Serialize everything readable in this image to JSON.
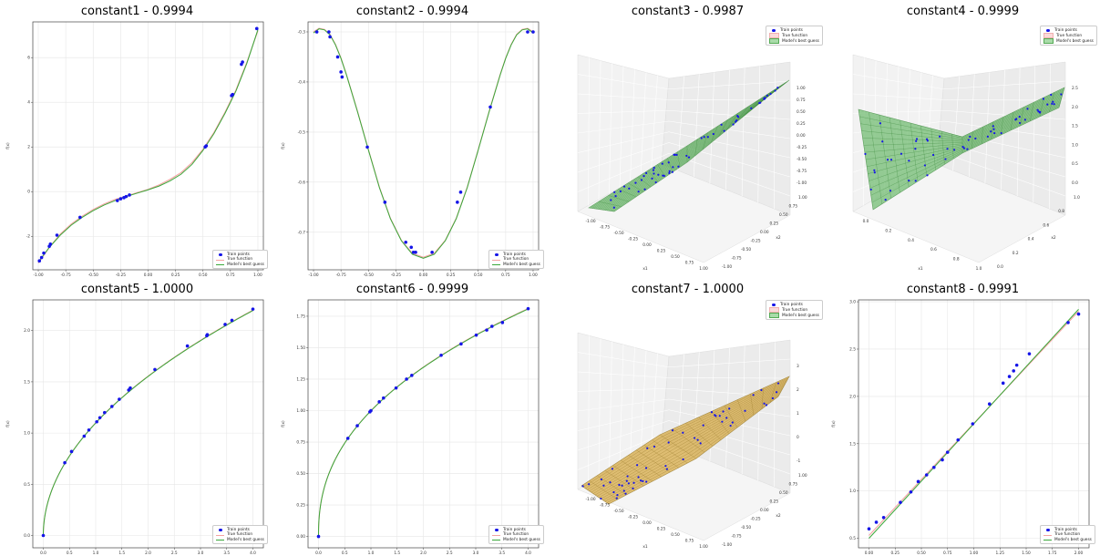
{
  "legend": {
    "train": "Train points",
    "true_fn": "True function",
    "guess": "Model's best guess"
  },
  "chart_data": [
    {
      "id": "c1",
      "type": "line",
      "dim": 2,
      "title": "constant1 - 0.9994",
      "xlabel": "x",
      "ylabel": "f(x)",
      "xlim": [
        -1.05,
        1.05
      ],
      "ylim": [
        -3.5,
        7.6
      ],
      "xticks": [
        -1.0,
        -0.75,
        -0.5,
        -0.25,
        0.0,
        0.25,
        0.5,
        0.75,
        1.0
      ],
      "xtick_labels": [
        "-1.00",
        "-0.75",
        "-0.50",
        "-0.25",
        "0.00",
        "0.25",
        "0.50",
        "0.75",
        "1.00"
      ],
      "yticks": [
        -2,
        0,
        2,
        4,
        6
      ],
      "ytick_labels": [
        "-2",
        "0",
        "2",
        "4",
        "6"
      ],
      "true_curve": {
        "x": [
          -1.0,
          -0.9,
          -0.8,
          -0.7,
          -0.6,
          -0.5,
          -0.4,
          -0.3,
          -0.2,
          -0.1,
          0.0,
          0.1,
          0.2,
          0.3,
          0.4,
          0.5,
          0.6,
          0.7,
          0.8,
          0.9,
          1.0
        ],
        "y": [
          -3.2,
          -2.5,
          -1.9,
          -1.45,
          -1.1,
          -0.8,
          -0.55,
          -0.35,
          -0.2,
          -0.05,
          0.1,
          0.3,
          0.55,
          0.85,
          1.3,
          1.9,
          2.65,
          3.55,
          4.55,
          5.8,
          7.2
        ]
      },
      "guess_curve": {
        "x": [
          -1.0,
          -0.9,
          -0.8,
          -0.7,
          -0.6,
          -0.5,
          -0.4,
          -0.3,
          -0.2,
          -0.1,
          0.0,
          0.1,
          0.2,
          0.3,
          0.4,
          0.5,
          0.6,
          0.7,
          0.8,
          0.9,
          1.0
        ],
        "y": [
          -3.15,
          -2.5,
          -1.95,
          -1.5,
          -1.15,
          -0.85,
          -0.6,
          -0.4,
          -0.22,
          -0.07,
          0.08,
          0.25,
          0.48,
          0.78,
          1.22,
          1.85,
          2.6,
          3.5,
          4.5,
          5.75,
          7.25
        ]
      },
      "points": {
        "x": [
          -0.99,
          -0.97,
          -0.95,
          -0.9,
          -0.89,
          -0.83,
          -0.62,
          -0.28,
          -0.25,
          -0.22,
          -0.2,
          -0.17,
          0.52,
          0.53,
          0.76,
          0.77,
          0.85,
          0.86,
          0.99
        ],
        "y": [
          -3.1,
          -2.95,
          -2.75,
          -2.45,
          -2.35,
          -1.95,
          -1.15,
          -0.4,
          -0.32,
          -0.27,
          -0.22,
          -0.15,
          2.0,
          2.05,
          4.3,
          4.35,
          5.7,
          5.8,
          7.3
        ]
      }
    },
    {
      "id": "c2",
      "type": "line",
      "dim": 2,
      "title": "constant2 - 0.9994",
      "xlabel": "x",
      "ylabel": "f(x)",
      "xlim": [
        -1.05,
        1.05
      ],
      "ylim": [
        -0.775,
        -0.28
      ],
      "xticks": [
        -1.0,
        -0.75,
        -0.5,
        -0.25,
        0.0,
        0.25,
        0.5,
        0.75,
        1.0
      ],
      "xtick_labels": [
        "-1.00",
        "-0.75",
        "-0.50",
        "-0.25",
        "0.00",
        "0.25",
        "0.50",
        "0.75",
        "1.00"
      ],
      "yticks": [
        -0.7,
        -0.6,
        -0.5,
        -0.4,
        -0.3
      ],
      "ytick_labels": [
        "-0.7",
        "-0.6",
        "-0.5",
        "-0.4",
        "-0.3"
      ],
      "true_curve": {
        "x": [
          -1.0,
          -0.95,
          -0.9,
          -0.85,
          -0.8,
          -0.75,
          -0.7,
          -0.6,
          -0.5,
          -0.4,
          -0.3,
          -0.2,
          -0.1,
          0.0,
          0.1,
          0.2,
          0.3,
          0.4,
          0.5,
          0.6,
          0.7,
          0.75,
          0.8,
          0.85,
          0.9,
          0.95,
          1.0
        ],
        "y": [
          -0.3,
          -0.293,
          -0.295,
          -0.305,
          -0.325,
          -0.352,
          -0.385,
          -0.458,
          -0.535,
          -0.61,
          -0.672,
          -0.716,
          -0.742,
          -0.75,
          -0.742,
          -0.716,
          -0.672,
          -0.61,
          -0.535,
          -0.458,
          -0.385,
          -0.352,
          -0.325,
          -0.305,
          -0.295,
          -0.293,
          -0.3
        ]
      },
      "guess_curve": {
        "x": [
          -1.0,
          -0.95,
          -0.9,
          -0.85,
          -0.8,
          -0.75,
          -0.7,
          -0.6,
          -0.5,
          -0.4,
          -0.3,
          -0.2,
          -0.1,
          0.0,
          0.1,
          0.2,
          0.3,
          0.4,
          0.5,
          0.6,
          0.7,
          0.75,
          0.8,
          0.85,
          0.9,
          0.95,
          1.0
        ],
        "y": [
          -0.302,
          -0.294,
          -0.296,
          -0.306,
          -0.326,
          -0.353,
          -0.386,
          -0.459,
          -0.536,
          -0.611,
          -0.673,
          -0.717,
          -0.744,
          -0.752,
          -0.744,
          -0.717,
          -0.673,
          -0.611,
          -0.536,
          -0.459,
          -0.386,
          -0.353,
          -0.326,
          -0.306,
          -0.296,
          -0.294,
          -0.302
        ]
      },
      "points": {
        "x": [
          -0.97,
          -0.86,
          -0.85,
          -0.78,
          -0.75,
          -0.74,
          -0.51,
          -0.35,
          -0.16,
          -0.11,
          -0.09,
          -0.07,
          0.08,
          0.31,
          0.34,
          0.61,
          0.95,
          1.0
        ],
        "y": [
          -0.3,
          -0.3,
          -0.31,
          -0.35,
          -0.38,
          -0.39,
          -0.53,
          -0.64,
          -0.72,
          -0.73,
          -0.74,
          -0.74,
          -0.74,
          -0.64,
          -0.62,
          -0.45,
          -0.3,
          -0.3
        ]
      }
    },
    {
      "id": "c3",
      "type": "scatter",
      "dim": 3,
      "style": "green",
      "title": "constant3 - 0.9987",
      "xlabel": "x1",
      "ylabel": "x2",
      "zticks": [
        "1.00",
        "0.75",
        "0.50",
        "0.25",
        "0.00",
        "-0.25",
        "-0.50",
        "-0.75",
        "-1.00"
      ],
      "x1ticks": [
        "-1.00",
        "-0.75",
        "-0.50",
        "-0.25",
        "0.00",
        "0.25",
        "0.50",
        "0.75",
        "1.00"
      ],
      "x2ticks": [
        "1.00",
        "0.75",
        "0.50",
        "0.25",
        "0.00",
        "-0.25",
        "-0.50",
        "-0.75",
        "-1.00"
      ]
    },
    {
      "id": "c4",
      "type": "scatter",
      "dim": 3,
      "style": "green",
      "title": "constant4 - 0.9999",
      "xlabel": "x1",
      "ylabel": "x2",
      "zticks": [
        "2.5",
        "2.0",
        "1.5",
        "1.0",
        "0.5",
        "0.0"
      ],
      "x1ticks": [
        "0.0",
        "0.2",
        "0.4",
        "0.6",
        "0.8",
        "1.0"
      ],
      "x2ticks": [
        "1.0",
        "0.8",
        "0.6",
        "0.4",
        "0.2",
        "0.0"
      ]
    },
    {
      "id": "c5",
      "type": "line",
      "dim": 2,
      "title": "constant5 - 1.0000",
      "xlabel": "x",
      "ylabel": "f(x)",
      "xlim": [
        -0.2,
        4.2
      ],
      "ylim": [
        -0.12,
        2.3
      ],
      "xticks": [
        0.0,
        0.5,
        1.0,
        1.5,
        2.0,
        2.5,
        3.0,
        3.5,
        4.0
      ],
      "xtick_labels": [
        "0.0",
        "0.5",
        "1.0",
        "1.5",
        "2.0",
        "2.5",
        "3.0",
        "3.5",
        "4.0"
      ],
      "yticks": [
        0.0,
        0.5,
        1.0,
        1.5,
        2.0
      ],
      "ytick_labels": [
        "0.0",
        "0.5",
        "1.0",
        "1.5",
        "2.0"
      ],
      "curve_fn": "power",
      "coef": 1.1,
      "exp": 0.5,
      "points": {
        "x": [
          0.0,
          0.41,
          0.54,
          0.78,
          0.87,
          1.02,
          1.08,
          1.17,
          1.31,
          1.45,
          1.63,
          1.66,
          2.13,
          2.75,
          3.12,
          3.13,
          3.47,
          3.6,
          4.0
        ],
        "y": [
          0.0,
          0.71,
          0.82,
          0.97,
          1.03,
          1.11,
          1.15,
          1.2,
          1.26,
          1.33,
          1.42,
          1.44,
          1.62,
          1.85,
          1.95,
          1.96,
          2.06,
          2.1,
          2.21
        ]
      }
    },
    {
      "id": "c6",
      "type": "line",
      "dim": 2,
      "title": "constant6 - 0.9999",
      "xlabel": "x",
      "ylabel": "f(x)",
      "xlim": [
        -0.2,
        4.2
      ],
      "ylim": [
        -0.09,
        1.88
      ],
      "xticks": [
        0.0,
        0.5,
        1.0,
        1.5,
        2.0,
        2.5,
        3.0,
        3.5,
        4.0
      ],
      "xtick_labels": [
        "0.0",
        "0.5",
        "1.0",
        "1.5",
        "2.0",
        "2.5",
        "3.0",
        "3.5",
        "4.0"
      ],
      "yticks": [
        0.0,
        0.25,
        0.5,
        0.75,
        1.0,
        1.25,
        1.5,
        1.75
      ],
      "ytick_labels": [
        "0.00",
        "0.25",
        "0.50",
        "0.75",
        "1.00",
        "1.25",
        "1.50",
        "1.75"
      ],
      "curve_fn": "power",
      "coef": 1.0,
      "exp": 0.4285,
      "points": {
        "x": [
          0.0,
          0.56,
          0.74,
          0.98,
          1.0,
          1.16,
          1.24,
          1.48,
          1.68,
          1.78,
          2.34,
          2.72,
          3.01,
          3.21,
          3.31,
          3.51,
          4.0
        ],
        "y": [
          0.0,
          0.78,
          0.88,
          0.99,
          1.0,
          1.07,
          1.1,
          1.18,
          1.25,
          1.28,
          1.44,
          1.53,
          1.6,
          1.64,
          1.67,
          1.7,
          1.81
        ]
      }
    },
    {
      "id": "c7",
      "type": "scatter",
      "dim": 3,
      "style": "orange",
      "title": "constant7 - 1.0000",
      "xlabel": "x1",
      "ylabel": "x2",
      "zticks": [
        "3",
        "2",
        "1",
        "0",
        "-1"
      ],
      "x1ticks": [
        "-1.00",
        "-0.75",
        "-0.50",
        "-0.25",
        "0.00",
        "0.25",
        "0.50",
        "0.75",
        "1.00"
      ],
      "x2ticks": [
        "1.00",
        "0.75",
        "0.50",
        "0.25",
        "0.00",
        "-0.25",
        "-0.50",
        "-0.75",
        "-1.00"
      ]
    },
    {
      "id": "c8",
      "type": "line",
      "dim": 2,
      "title": "constant8 - 0.9991",
      "xlabel": "x",
      "ylabel": "f(x)",
      "xlim": [
        -0.1,
        2.1
      ],
      "ylim": [
        0.4,
        3.02
      ],
      "xticks": [
        0.0,
        0.25,
        0.5,
        0.75,
        1.0,
        1.25,
        1.5,
        1.75,
        2.0
      ],
      "xtick_labels": [
        "0.00",
        "0.25",
        "0.50",
        "0.75",
        "1.00",
        "1.25",
        "1.50",
        "1.75",
        "2.00"
      ],
      "yticks": [
        0.5,
        1.0,
        1.5,
        2.0,
        2.5,
        3.0
      ],
      "ytick_labels": [
        "0.5",
        "1.0",
        "1.5",
        "2.0",
        "2.5",
        "3.0"
      ],
      "true_curve": {
        "x": [
          0.0,
          2.0
        ],
        "y": [
          0.53,
          2.9
        ]
      },
      "guess_curve": {
        "x": [
          0.0,
          2.0
        ],
        "y": [
          0.5,
          2.92
        ]
      },
      "points": {
        "x": [
          0.0,
          0.07,
          0.14,
          0.3,
          0.4,
          0.47,
          0.55,
          0.62,
          0.7,
          0.75,
          0.85,
          0.99,
          1.15,
          1.28,
          1.34,
          1.38,
          1.41,
          1.53,
          1.9,
          2.0
        ],
        "y": [
          0.6,
          0.67,
          0.72,
          0.88,
          0.99,
          1.1,
          1.17,
          1.25,
          1.33,
          1.41,
          1.54,
          1.71,
          1.92,
          2.14,
          2.21,
          2.27,
          2.33,
          2.45,
          2.78,
          2.87
        ]
      }
    }
  ]
}
